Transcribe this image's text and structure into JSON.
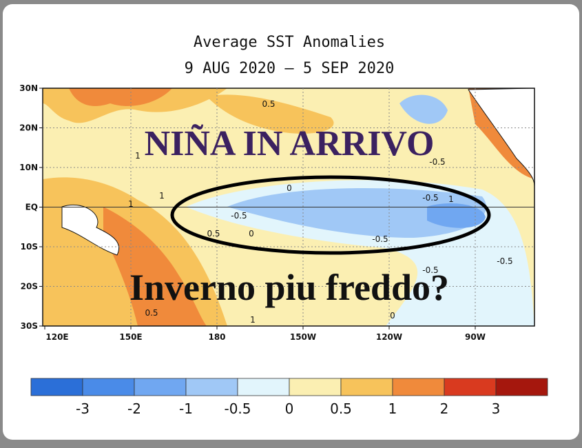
{
  "title": "Average SST Anomalies",
  "subtitle": "9 AUG 2020 – 5 SEP 2020",
  "map": {
    "lat_labels": [
      "30N",
      "20N",
      "10N",
      "EQ",
      "10S",
      "20S",
      "30S"
    ],
    "lon_labels": [
      "120E",
      "150E",
      "180",
      "150W",
      "120W",
      "90W"
    ],
    "contour_labels": [
      0.5,
      1,
      1,
      1,
      0,
      -0.5,
      0.5,
      0,
      -0.5,
      -0.5,
      1,
      -0.5,
      -0.5,
      -0.5,
      0.5,
      1,
      0
    ]
  },
  "overlay": {
    "headline": "NIÑA IN ARRIVO",
    "caption": "Inverno piu freddo?"
  },
  "colorbar": {
    "colors": [
      "#2b6fd8",
      "#4a8be8",
      "#70a7f1",
      "#a0c8f6",
      "#e2f5fc",
      "#fbefb2",
      "#f7c35b",
      "#f08a3b",
      "#d93a1f",
      "#a5170d"
    ],
    "ticks": [
      -3,
      -2,
      -1,
      -0.5,
      0,
      0.5,
      1,
      2,
      3
    ]
  }
}
